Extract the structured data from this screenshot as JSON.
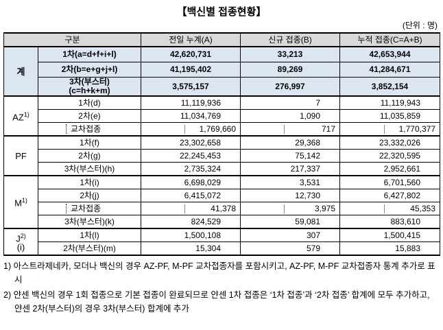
{
  "header": {
    "title": "【백신별 접종현황】",
    "unit": "(단위 : 명)"
  },
  "table": {
    "columns": [
      "구분",
      "전일 누계(A)",
      "신규 접종(B)",
      "누적 접종(C=A+B)"
    ],
    "groups": [
      {
        "label": "계",
        "bold": true,
        "rows": [
          {
            "label": "1차(a=d+f+i+l)",
            "values": [
              "42,620,731",
              "33,213",
              "42,653,944"
            ]
          },
          {
            "label": "2차(b=e+g+j+l)",
            "values": [
              "41,195,402",
              "89,269",
              "41,284,671"
            ]
          },
          {
            "label": "3차(부스터)\n(c=h+k+m)",
            "values": [
              "3,575,157",
              "276,997",
              "3,852,154"
            ]
          }
        ]
      },
      {
        "label": "AZ",
        "note": "1)",
        "rows": [
          {
            "label": "1차(d)",
            "values": [
              "11,119,936",
              "7",
              "11,119,943"
            ]
          },
          {
            "label": "2차(e)",
            "values": [
              "11,034,769",
              "1,090",
              "11,035,859"
            ]
          },
          {
            "label": "교차접종",
            "indent": true,
            "values": [
              "1,769,660",
              "717",
              "1,770,377"
            ]
          }
        ]
      },
      {
        "label": "PF",
        "rows": [
          {
            "label": "1차(f)",
            "values": [
              "23,302,658",
              "29,368",
              "23,332,026"
            ]
          },
          {
            "label": "2차(g)",
            "values": [
              "22,245,453",
              "75,142",
              "22,320,595"
            ]
          },
          {
            "label": "3차(부스터)(h)",
            "values": [
              "2,735,324",
              "217,337",
              "2,952,661"
            ]
          }
        ]
      },
      {
        "label": "M",
        "note": "1)",
        "rows": [
          {
            "label": "1차(i)",
            "values": [
              "6,698,029",
              "3,531",
              "6,701,560"
            ]
          },
          {
            "label": "2차(j)",
            "values": [
              "6,415,072",
              "12,730",
              "6,427,802"
            ]
          },
          {
            "label": "교차접종",
            "indent": true,
            "values": [
              "41,378",
              "3,975",
              "45,353"
            ]
          },
          {
            "label": "3차(부스터)(k)",
            "values": [
              "824,529",
              "59,081",
              "883,610"
            ]
          }
        ]
      },
      {
        "label": "J",
        "note": "2)",
        "sub": "(i)",
        "rows": [
          {
            "label": "1차(l)",
            "values": [
              "1,500,108",
              "307",
              "1,500,415"
            ]
          },
          {
            "label": "2차(부스터)(m)",
            "values": [
              "15,304",
              "579",
              "15,883"
            ]
          }
        ]
      }
    ]
  },
  "footnotes": [
    "1) 아스트라제네카, 모더나 백신의 경우 AZ-PF, M-PF 교차접종자를 포함시키고, AZ-PF, M-PF 교차접종자 통계 추가로 표시",
    "2) 얀센 백신의 경우 1회 접종으로 기본 접종이 완료되므로 얀센 1차 접종은 ‘1차 접종’과 ‘2차 접종’ 합계에 모두 추가하고, 얀센 2차(부스터)의 경우 3차(부스터) 합계에 추가"
  ]
}
